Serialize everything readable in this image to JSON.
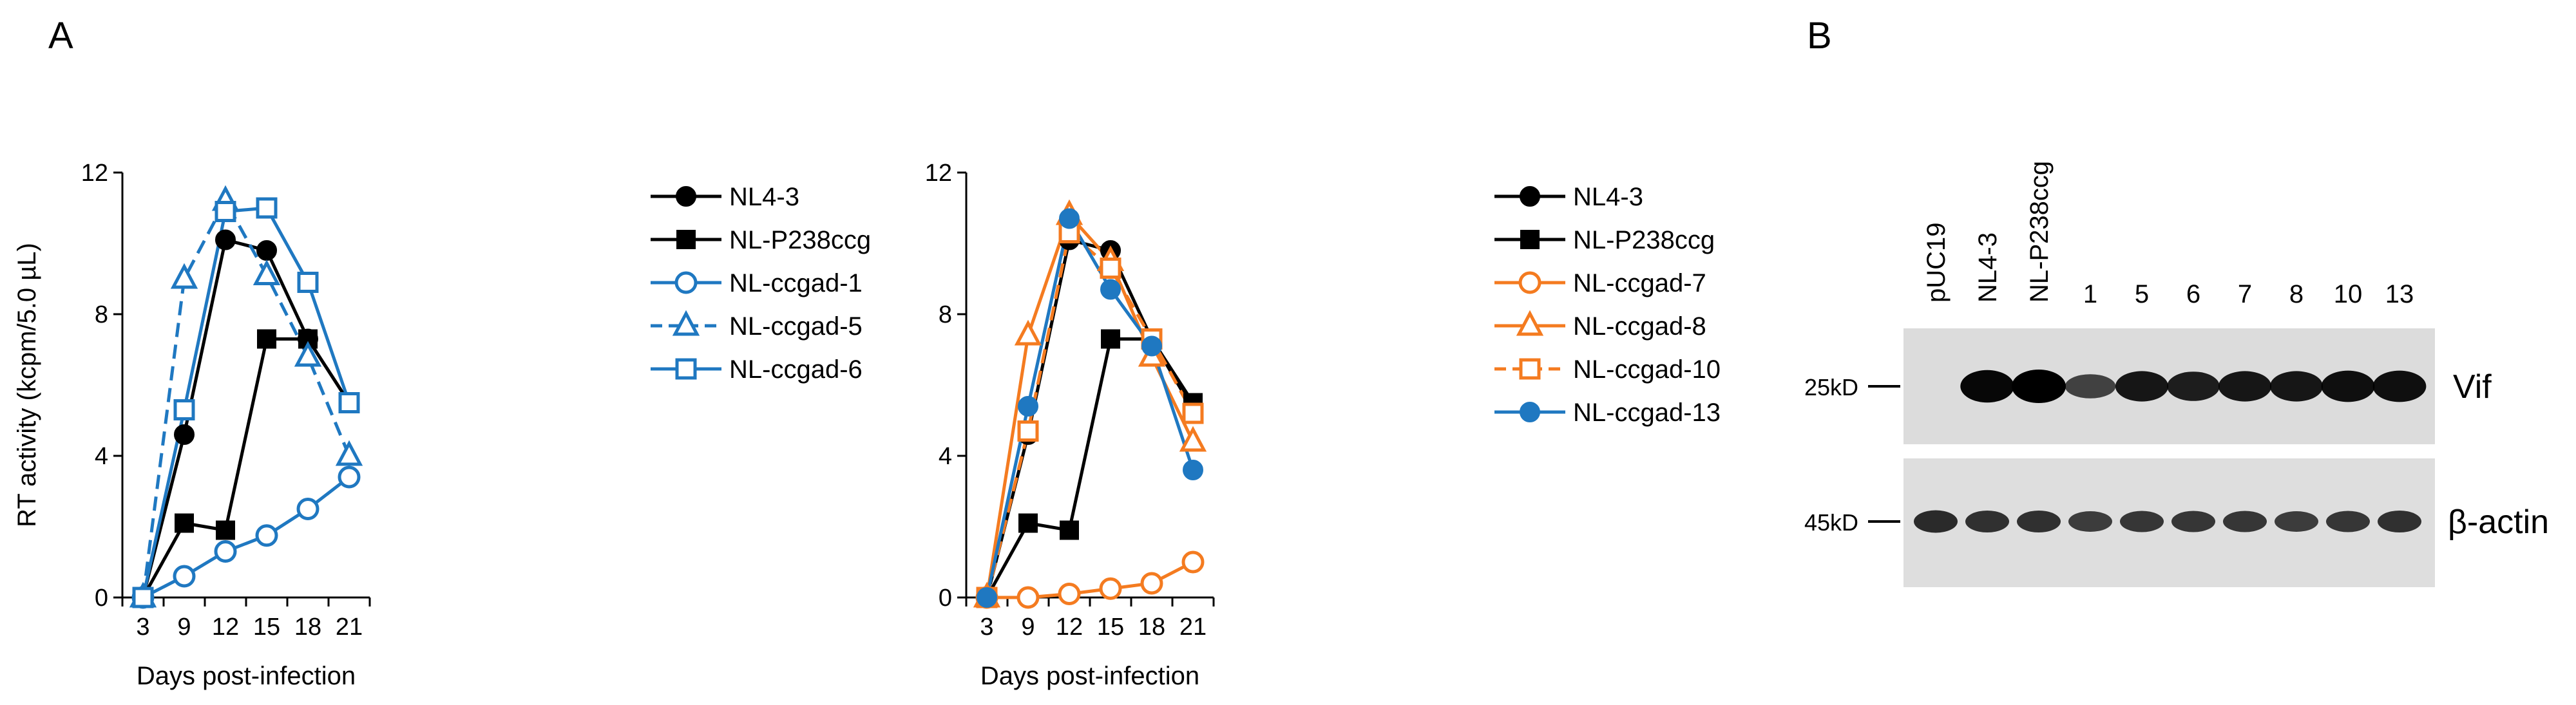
{
  "panels": {
    "a": "A",
    "b": "B"
  },
  "chart_data": [
    {
      "type": "line",
      "xlabel": "Days post-infection",
      "ylabel": "RT activity (kcpm/5.0 µL)",
      "x": [
        3,
        9,
        12,
        15,
        18,
        21
      ],
      "xticks": [
        "3",
        "9",
        "12",
        "15",
        "18",
        "21"
      ],
      "ylim": [
        0,
        12
      ],
      "yticks": [
        "0",
        "4",
        "8",
        "12"
      ],
      "series": [
        {
          "name": "NL4-3",
          "color": "#000000",
          "marker": "circle-filled",
          "dash": false,
          "values": [
            0,
            4.6,
            10.1,
            9.8,
            7.3,
            5.5
          ]
        },
        {
          "name": "NL-P238ccg",
          "color": "#000000",
          "marker": "square-filled",
          "dash": false,
          "values": [
            0,
            2.1,
            1.9,
            7.3,
            7.3,
            5.5
          ]
        },
        {
          "name": "NL-ccgad-1",
          "color": "#1f78c1",
          "marker": "circle-open",
          "dash": false,
          "values": [
            0,
            0.6,
            1.3,
            1.75,
            2.5,
            3.4
          ]
        },
        {
          "name": "NL-ccgad-5",
          "color": "#1f78c1",
          "marker": "triangle-open",
          "dash": true,
          "values": [
            0,
            9.0,
            11.2,
            9.1,
            6.8,
            4.0
          ]
        },
        {
          "name": "NL-ccgad-6",
          "color": "#1f78c1",
          "marker": "square-open",
          "dash": false,
          "values": [
            0,
            5.3,
            10.9,
            11.0,
            8.9,
            5.5
          ]
        }
      ]
    },
    {
      "type": "line",
      "xlabel": "Days post-infection",
      "ylabel": "",
      "x": [
        3,
        9,
        12,
        15,
        18,
        21
      ],
      "xticks": [
        "3",
        "9",
        "12",
        "15",
        "18",
        "21"
      ],
      "ylim": [
        0,
        12
      ],
      "yticks": [
        "0",
        "4",
        "8",
        "12"
      ],
      "series": [
        {
          "name": "NL4-3",
          "color": "#000000",
          "marker": "circle-filled",
          "dash": false,
          "values": [
            0,
            4.6,
            10.1,
            9.8,
            7.3,
            5.3
          ]
        },
        {
          "name": "NL-P238ccg",
          "color": "#000000",
          "marker": "square-filled",
          "dash": false,
          "values": [
            0,
            2.1,
            1.9,
            7.3,
            7.3,
            5.5
          ]
        },
        {
          "name": "NL-ccgad-7",
          "color": "#f47b20",
          "marker": "circle-open",
          "dash": false,
          "values": [
            0,
            0,
            0.1,
            0.25,
            0.4,
            1.0
          ]
        },
        {
          "name": "NL-ccgad-8",
          "color": "#f47b20",
          "marker": "triangle-open",
          "dash": false,
          "values": [
            0,
            7.4,
            10.8,
            9.5,
            6.8,
            4.4
          ]
        },
        {
          "name": "NL-ccgad-10",
          "color": "#f47b20",
          "marker": "square-open",
          "dash": true,
          "values": [
            0,
            4.7,
            10.3,
            9.3,
            7.3,
            5.2
          ]
        },
        {
          "name": "NL-ccgad-13",
          "color": "#1f78c1",
          "marker": "circle-filled",
          "dash": false,
          "values": [
            0,
            5.4,
            10.7,
            8.7,
            7.1,
            3.6
          ]
        }
      ]
    }
  ],
  "blot": {
    "lanes": [
      "pUC19",
      "NL4-3",
      "NL-P238ccg",
      "1",
      "5",
      "6",
      "7",
      "8",
      "10",
      "13"
    ],
    "vif_label": "Vif",
    "actin_label": "β-actin",
    "marker_top": "25kD",
    "marker_bottom": "45kD",
    "vif_intensity": [
      0,
      0.95,
      1.0,
      0.55,
      0.85,
      0.8,
      0.85,
      0.85,
      0.9,
      0.9
    ],
    "actin_intensity": [
      0.75,
      0.7,
      0.7,
      0.6,
      0.65,
      0.65,
      0.65,
      0.6,
      0.65,
      0.7
    ]
  }
}
